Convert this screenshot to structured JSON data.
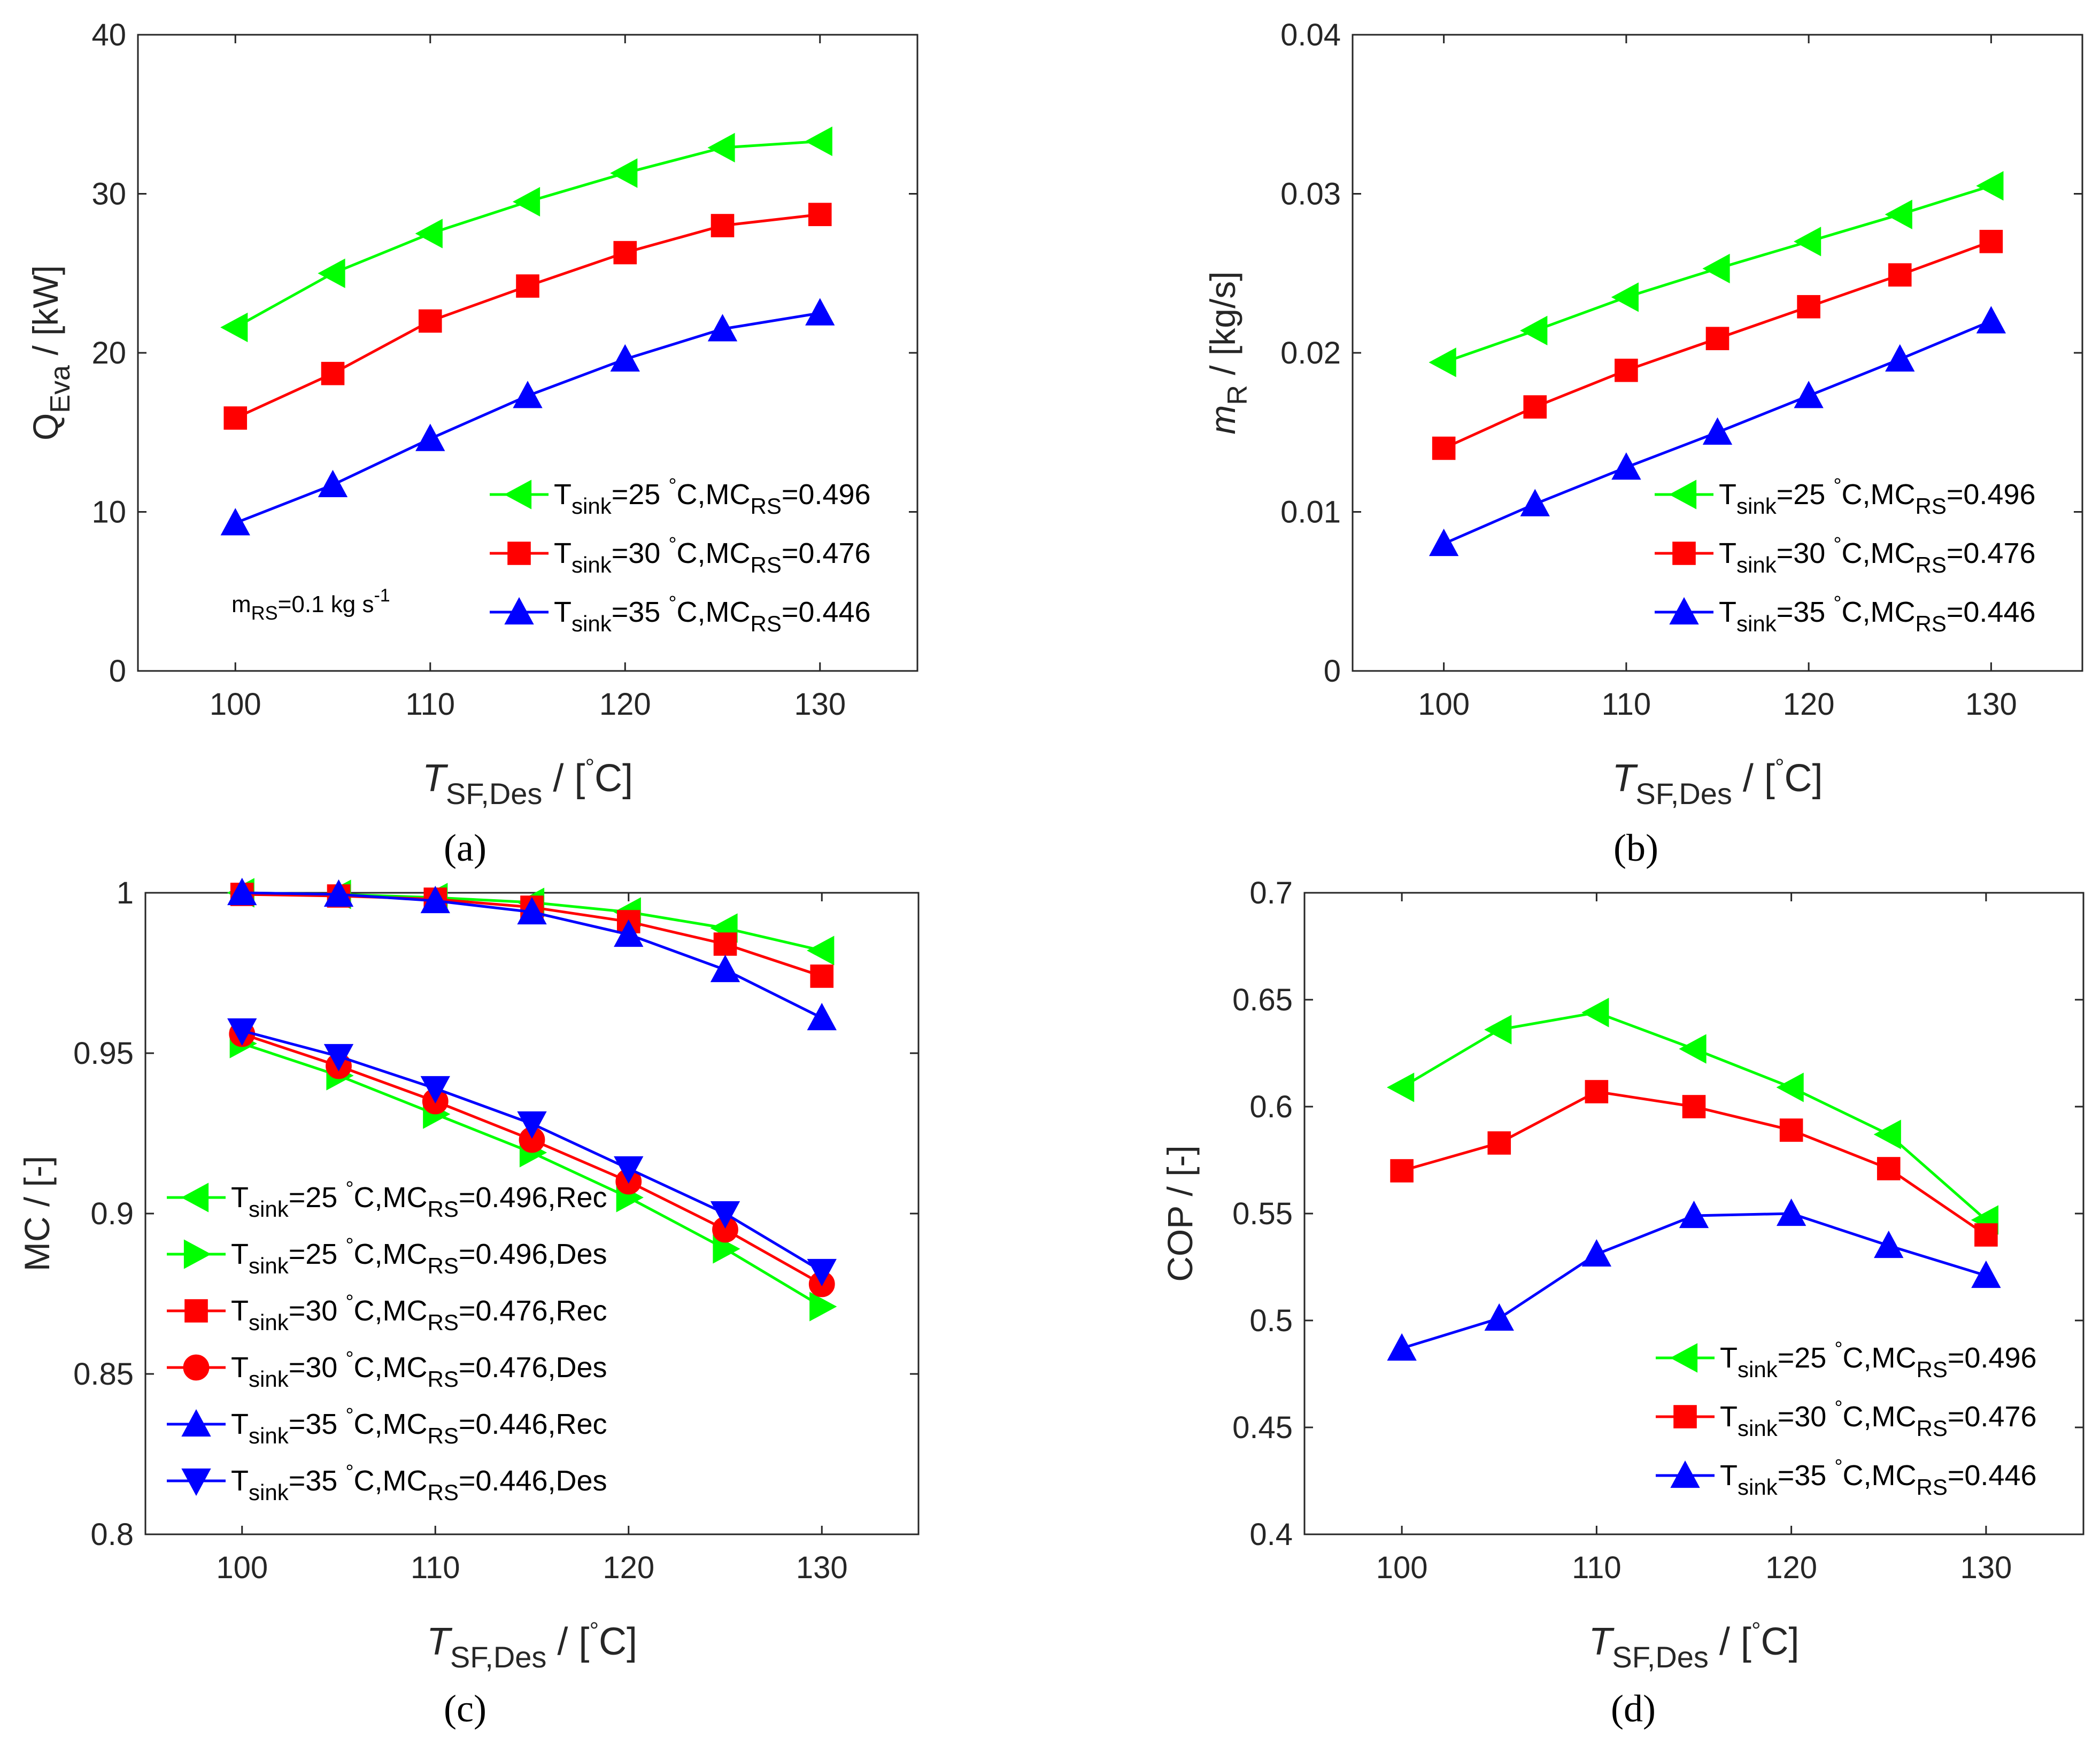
{
  "chart_data": [
    {
      "id": "a",
      "type": "line",
      "panel_label": "(a)",
      "ylabel_main": "Q",
      "ylabel_sub": "Eva",
      "ylabel_unit": " / [kW]",
      "xlabel_main": "T",
      "xlabel_sub": "SF,Des",
      "xlabel_unit": " / [",
      "xlabel_deg": "°",
      "xlabel_end": "C]",
      "xlim": [
        95,
        135
      ],
      "ylim": [
        0,
        40
      ],
      "xticks": [
        100,
        110,
        120,
        130
      ],
      "yticks": [
        0,
        10,
        20,
        30,
        40
      ],
      "ytick_labels": [
        "0",
        "10",
        "20",
        "30",
        "40"
      ],
      "x": [
        100,
        105,
        110,
        115,
        120,
        125,
        130
      ],
      "annotation": {
        "main": "m",
        "sub": "RS",
        "rest": "=0.1 kg s",
        "sup": "-1"
      },
      "legend_position": "bottom-right",
      "series": [
        {
          "name": "T_sink=25 °C,MC_RS=0.496",
          "l_sub": "sink",
          "l_mid": "=25 ",
          "l_deg": "°",
          "l_rest": "C,MC",
          "l_sub2": "RS",
          "l_end": "=0.496",
          "color": "#00ff00",
          "marker": "triangle-left",
          "values": [
            21.6,
            25.0,
            27.5,
            29.5,
            31.3,
            32.9,
            33.3
          ]
        },
        {
          "name": "T_sink=30 °C,MC_RS=0.476",
          "l_sub": "sink",
          "l_mid": "=30 ",
          "l_deg": "°",
          "l_rest": "C,MC",
          "l_sub2": "RS",
          "l_end": "=0.476",
          "color": "#ff0000",
          "marker": "square",
          "values": [
            15.9,
            18.7,
            22.0,
            24.2,
            26.3,
            28.0,
            28.7
          ]
        },
        {
          "name": "T_sink=35 °C,MC_RS=0.446",
          "l_sub": "sink",
          "l_mid": "=35 ",
          "l_deg": "°",
          "l_rest": "C,MC",
          "l_sub2": "RS",
          "l_end": "=0.446",
          "color": "#0000ff",
          "marker": "triangle-up",
          "values": [
            9.3,
            11.7,
            14.6,
            17.3,
            19.6,
            21.5,
            22.5
          ]
        }
      ]
    },
    {
      "id": "b",
      "type": "line",
      "panel_label": "(b)",
      "ylabel_main": "m",
      "ylabel_sub": "R",
      "ylabel_unit": " / [kg/s]",
      "xlabel_main": "T",
      "xlabel_sub": "SF,Des",
      "xlabel_unit": " / [",
      "xlabel_deg": "°",
      "xlabel_end": "C]",
      "xlim": [
        95,
        135
      ],
      "ylim": [
        0,
        0.04
      ],
      "xticks": [
        100,
        110,
        120,
        130
      ],
      "yticks": [
        0,
        0.01,
        0.02,
        0.03,
        0.04
      ],
      "ytick_labels": [
        "0",
        "0.01",
        "0.02",
        "0.03",
        "0.04"
      ],
      "x": [
        100,
        105,
        110,
        115,
        120,
        125,
        130
      ],
      "legend_position": "bottom-right",
      "series": [
        {
          "name": "T_sink=25 °C,MC_RS=0.496",
          "l_sub": "sink",
          "l_mid": "=25 ",
          "l_deg": "°",
          "l_rest": "C,MC",
          "l_sub2": "RS",
          "l_end": "=0.496",
          "color": "#00ff00",
          "marker": "triangle-left",
          "values": [
            0.0194,
            0.0214,
            0.0235,
            0.0253,
            0.027,
            0.0287,
            0.0305
          ]
        },
        {
          "name": "T_sink=30 °C,MC_RS=0.476",
          "l_sub": "sink",
          "l_mid": "=30 ",
          "l_deg": "°",
          "l_rest": "C,MC",
          "l_sub2": "RS",
          "l_end": "=0.476",
          "color": "#ff0000",
          "marker": "square",
          "values": [
            0.014,
            0.0166,
            0.0189,
            0.0209,
            0.0229,
            0.0249,
            0.027
          ]
        },
        {
          "name": "T_sink=35 °C,MC_RS=0.446",
          "l_sub": "sink",
          "l_mid": "=35 ",
          "l_deg": "°",
          "l_rest": "C,MC",
          "l_sub2": "RS",
          "l_end": "=0.446",
          "color": "#0000ff",
          "marker": "triangle-up",
          "values": [
            0.008,
            0.0105,
            0.0128,
            0.015,
            0.0173,
            0.0196,
            0.022
          ]
        }
      ]
    },
    {
      "id": "c",
      "type": "line",
      "panel_label": "(c)",
      "ylabel_main": "MC / [-]",
      "xlabel_main": "T",
      "xlabel_sub": "SF,Des",
      "xlabel_unit": " / [",
      "xlabel_deg": "°",
      "xlabel_end": "C]",
      "xlim": [
        95,
        135
      ],
      "ylim": [
        0.8,
        1.0
      ],
      "xticks": [
        100,
        110,
        120,
        130
      ],
      "yticks": [
        0.8,
        0.85,
        0.9,
        0.95,
        1.0
      ],
      "ytick_labels": [
        "0.8",
        "0.85",
        "0.9",
        "0.95",
        "1"
      ],
      "x": [
        100,
        105,
        110,
        115,
        120,
        125,
        130
      ],
      "legend_position": "bottom-left",
      "series": [
        {
          "name": "T_sink=25 °C,MC_RS=0.496,Rec",
          "l_sub": "sink",
          "l_mid": "=25 ",
          "l_deg": "°",
          "l_rest": "C,MC",
          "l_sub2": "RS",
          "l_end": "=0.496,Rec",
          "color": "#00ff00",
          "marker": "triangle-left",
          "values": [
            1.0,
            0.9995,
            0.9985,
            0.997,
            0.994,
            0.989,
            0.982
          ]
        },
        {
          "name": "T_sink=25 °C,MC_RS=0.496,Des",
          "l_sub": "sink",
          "l_mid": "=25 ",
          "l_deg": "°",
          "l_rest": "C,MC",
          "l_sub2": "RS",
          "l_end": "=0.496,Des",
          "color": "#00ff00",
          "marker": "triangle-right",
          "values": [
            0.953,
            0.943,
            0.931,
            0.919,
            0.905,
            0.889,
            0.871
          ]
        },
        {
          "name": "T_sink=30 °C,MC_RS=0.476,Rec",
          "l_sub": "sink",
          "l_mid": "=30 ",
          "l_deg": "°",
          "l_rest": "C,MC",
          "l_sub2": "RS",
          "l_end": "=0.476,Rec",
          "color": "#ff0000",
          "marker": "square",
          "values": [
            0.9995,
            0.999,
            0.998,
            0.9955,
            0.991,
            0.984,
            0.974
          ]
        },
        {
          "name": "T_sink=30 °C,MC_RS=0.476,Des",
          "l_sub": "sink",
          "l_mid": "=30 ",
          "l_deg": "°",
          "l_rest": "C,MC",
          "l_sub2": "RS",
          "l_end": "=0.476,Des",
          "color": "#ff0000",
          "marker": "circle",
          "values": [
            0.956,
            0.946,
            0.935,
            0.923,
            0.91,
            0.895,
            0.878
          ]
        },
        {
          "name": "T_sink=35 °C,MC_RS=0.446,Rec",
          "l_sub": "sink",
          "l_mid": "=35 ",
          "l_deg": "°",
          "l_rest": "C,MC",
          "l_sub2": "RS",
          "l_end": "=0.446,Rec",
          "color": "#0000ff",
          "marker": "triangle-up",
          "values": [
            1.0,
            0.9995,
            0.9975,
            0.994,
            0.987,
            0.976,
            0.961
          ]
        },
        {
          "name": "T_sink=35 °C,MC_RS=0.446,Des",
          "l_sub": "sink",
          "l_mid": "=35 ",
          "l_deg": "°",
          "l_rest": "C,MC",
          "l_sub2": "RS",
          "l_end": "=0.446,Des",
          "color": "#0000ff",
          "marker": "triangle-down",
          "values": [
            0.957,
            0.949,
            0.939,
            0.928,
            0.914,
            0.9,
            0.882
          ]
        }
      ]
    },
    {
      "id": "d",
      "type": "line",
      "panel_label": "(d)",
      "ylabel_main": "COP / [-]",
      "xlabel_main": "T",
      "xlabel_sub": "SF,Des",
      "xlabel_unit": " / [",
      "xlabel_deg": "°",
      "xlabel_end": "C]",
      "xlim": [
        95,
        135
      ],
      "ylim": [
        0.4,
        0.7
      ],
      "xticks": [
        100,
        110,
        120,
        130
      ],
      "yticks": [
        0.4,
        0.45,
        0.5,
        0.55,
        0.6,
        0.65,
        0.7
      ],
      "ytick_labels": [
        "0.4",
        "0.45",
        "0.5",
        "0.55",
        "0.6",
        "0.65",
        "0.7"
      ],
      "x": [
        100,
        105,
        110,
        115,
        120,
        125,
        130
      ],
      "legend_position": "bottom-right",
      "series": [
        {
          "name": "T_sink=25 °C,MC_RS=0.496",
          "l_sub": "sink",
          "l_mid": "=25 ",
          "l_deg": "°",
          "l_rest": "C,MC",
          "l_sub2": "RS",
          "l_end": "=0.496",
          "color": "#00ff00",
          "marker": "triangle-left",
          "values": [
            0.609,
            0.636,
            0.644,
            0.627,
            0.609,
            0.587,
            0.547
          ]
        },
        {
          "name": "T_sink=30 °C,MC_RS=0.476",
          "l_sub": "sink",
          "l_mid": "=30 ",
          "l_deg": "°",
          "l_rest": "C,MC",
          "l_sub2": "RS",
          "l_end": "=0.476",
          "color": "#ff0000",
          "marker": "square",
          "values": [
            0.57,
            0.583,
            0.607,
            0.6,
            0.589,
            0.571,
            0.54
          ]
        },
        {
          "name": "T_sink=35 °C,MC_RS=0.446",
          "l_sub": "sink",
          "l_mid": "=35 ",
          "l_deg": "°",
          "l_rest": "C,MC",
          "l_sub2": "RS",
          "l_end": "=0.446",
          "color": "#0000ff",
          "marker": "triangle-up",
          "values": [
            0.487,
            0.501,
            0.531,
            0.549,
            0.55,
            0.535,
            0.521
          ]
        }
      ]
    }
  ]
}
